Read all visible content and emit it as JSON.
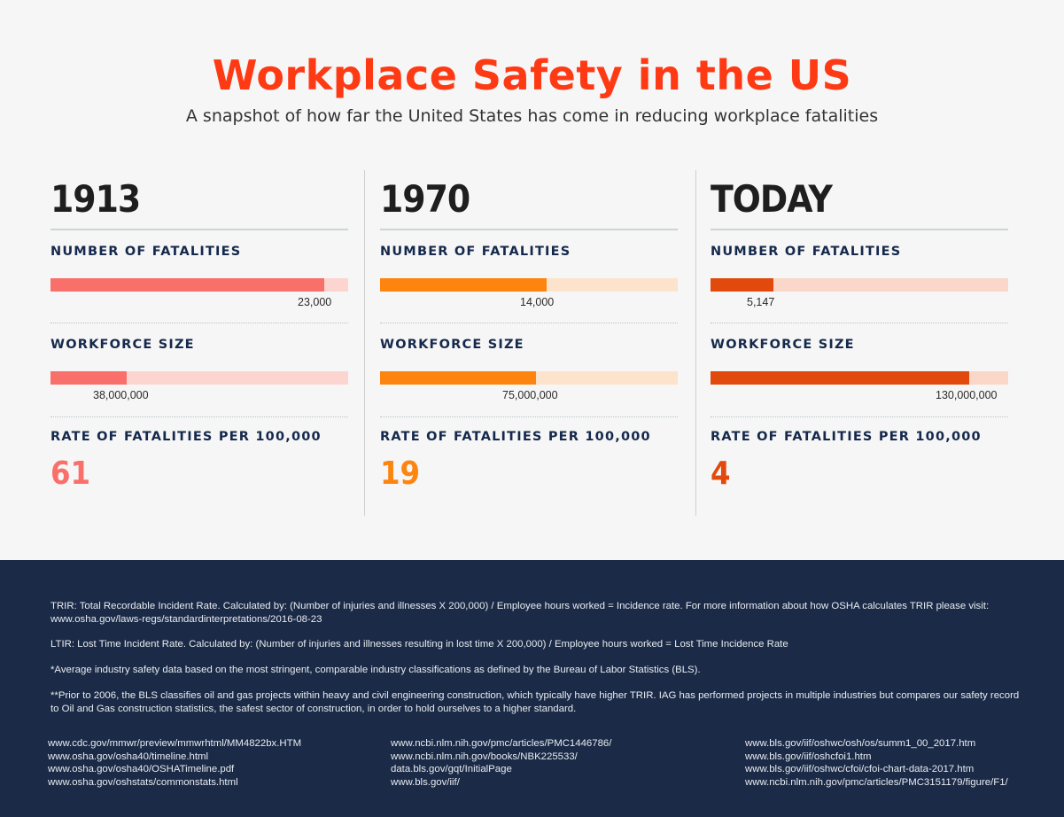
{
  "header": {
    "title": "Workplace Safety in the US",
    "subtitle": "A snapshot of how far the United States has come in reducing workplace fatalities"
  },
  "columns": [
    {
      "era": "1913",
      "fatalities_label": "NUMBER OF FATALITIES",
      "fatalities_value": "23,000",
      "fatalities_fraction": 0.92,
      "workforce_label": "WORKFORCE SIZE",
      "workforce_value": "38,000,000",
      "workforce_fraction": 0.255,
      "rate_label": "RATE OF FATALITIES PER 100,000",
      "rate_value": "61",
      "color": "#f9706a",
      "track_color": "#fdd5d0"
    },
    {
      "era": "1970",
      "fatalities_label": "NUMBER OF FATALITIES",
      "fatalities_value": "14,000",
      "fatalities_fraction": 0.56,
      "workforce_label": "WORKFORCE SIZE",
      "workforce_value": "75,000,000",
      "workforce_fraction": 0.525,
      "rate_label": "RATE OF FATALITIES PER 100,000",
      "rate_value": "19",
      "color": "#fd850f",
      "track_color": "#fde3cb"
    },
    {
      "era": "TODAY",
      "fatalities_label": "NUMBER OF FATALITIES",
      "fatalities_value": "5,147",
      "fatalities_fraction": 0.21,
      "workforce_label": "WORKFORCE SIZE",
      "workforce_value": "130,000,000",
      "workforce_fraction": 0.87,
      "rate_label": "RATE OF FATALITIES PER 100,000",
      "rate_value": "4",
      "color": "#e14a0c",
      "track_color": "#fbd7c9"
    }
  ],
  "footer": {
    "notes": [
      "TRIR: Total Recordable Incident Rate. Calculated by: (Number of injuries and illnesses X 200,000) / Employee hours worked = Incidence rate. For more information about how OSHA calculates TRIR please visit: www.osha.gov/laws-regs/standardinterpretations/2016-08-23",
      "LTIR: Lost Time Incident Rate. Calculated by: (Number of injuries and illnesses resulting in lost time X 200,000) / Employee hours worked = Lost Time Incidence Rate",
      "*Average industry safety data based on the most stringent, comparable industry classifications as defined by the Bureau of Labor Statistics (BLS).",
      "**Prior to 2006, the BLS classifies oil and gas projects within heavy and civil engineering construction, which typically have higher TRIR. IAG has performed projects in multiple industries but compares our safety record to  Oil and Gas construction statistics, the safest sector of construction, in order to hold ourselves to a higher standard."
    ],
    "link_columns": [
      [
        "www.cdc.gov/mmwr/preview/mmwrhtml/MM4822bx.HTM",
        "www.osha.gov/osha40/timeline.html",
        "www.osha.gov/osha40/OSHATimeline.pdf",
        "www.osha.gov/oshstats/commonstats.html"
      ],
      [
        "www.ncbi.nlm.nih.gov/pmc/articles/PMC1446786/",
        "www.ncbi.nlm.nih.gov/books/NBK225533/",
        "data.bls.gov/gqt/InitialPage",
        "www.bls.gov/iif/"
      ],
      [
        "www.bls.gov/iif/oshwc/osh/os/summ1_00_2017.htm",
        "www.bls.gov/iif/oshcfoi1.htm",
        "www.bls.gov/iif/oshwc/cfoi/cfoi-chart-data-2017.htm",
        "www.ncbi.nlm.nih.gov/pmc/articles/PMC3151179/figure/F1/"
      ]
    ]
  }
}
